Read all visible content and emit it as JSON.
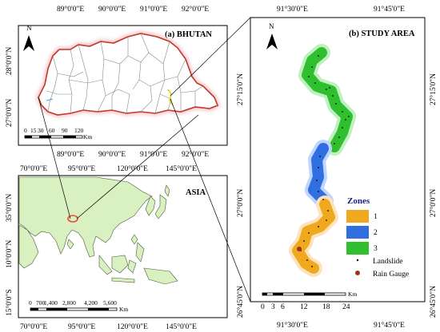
{
  "bhutan_panel": {
    "title": "(a) BHUTAN",
    "north": "N",
    "top_longitudes": [
      "89°0'0\"E",
      "90°0'0\"E",
      "91°0'0\"E",
      "92°0'0\"E"
    ],
    "bottom_longitudes": [
      "89°0'0\"E",
      "90°0'0\"E",
      "91°0'0\"E",
      "92°0'0\"E"
    ],
    "latitudes": [
      "28°0'0\"N",
      "27°0'0\"N"
    ],
    "scale_ticks": [
      "0",
      "15",
      "30",
      "60",
      "90",
      "120"
    ],
    "scale_unit": "Km",
    "colors": {
      "border": "#c0392b",
      "districts": "#7f8c8d",
      "glow": "#f5c6cb"
    }
  },
  "asia_panel": {
    "title": "ASIA",
    "top_longitudes": [
      "70°0'0\"E",
      "95°0'0\"E",
      "120°0'0\"E",
      "145°0'0\"E"
    ],
    "bottom_longitudes": [
      "70°0'0\"E",
      "95°0'0\"E",
      "120°0'0\"E",
      "145°0'0\"E"
    ],
    "latitudes": [
      "35°0'0\"N",
      "10°0'0\"N",
      "15°0'0\"S"
    ],
    "scale_ticks": [
      "0",
      "700",
      "1,400",
      "2,800",
      "4,200",
      "5,600"
    ],
    "scale_unit": "Km",
    "colors": {
      "land": "#d9f0c0",
      "land_stroke": "#4a5a3a",
      "highlight": "#e74c3c"
    }
  },
  "study_panel": {
    "title": "(b) STUDY AREA",
    "north": "N",
    "top_longitudes": [
      "91°30'0\"E",
      "91°45'0\"E"
    ],
    "bottom_longitudes": [
      "91°30'0\"E",
      "91°45'0\"E"
    ],
    "right_latitudes": [
      "27°15'0\"N",
      "27°0'0\"N",
      "26°45'0\"N"
    ],
    "left_latitudes": [
      "27°15'0\"N",
      "27°0'0\"N",
      "26°45'0\"N"
    ],
    "scale_ticks": [
      "0",
      "3",
      "6",
      "12",
      "18",
      "24"
    ],
    "scale_unit": "Km",
    "legend": {
      "title": "Zones",
      "items": [
        {
          "label": "1",
          "color": "#f0a81e"
        },
        {
          "label": "2",
          "color": "#2f6fe0"
        },
        {
          "label": "3",
          "color": "#2fbf2f"
        }
      ],
      "landslide_label": "Landslide",
      "rain_gauge_label": "Rain Gauge",
      "rain_gauge_color": "#a0331b"
    }
  }
}
